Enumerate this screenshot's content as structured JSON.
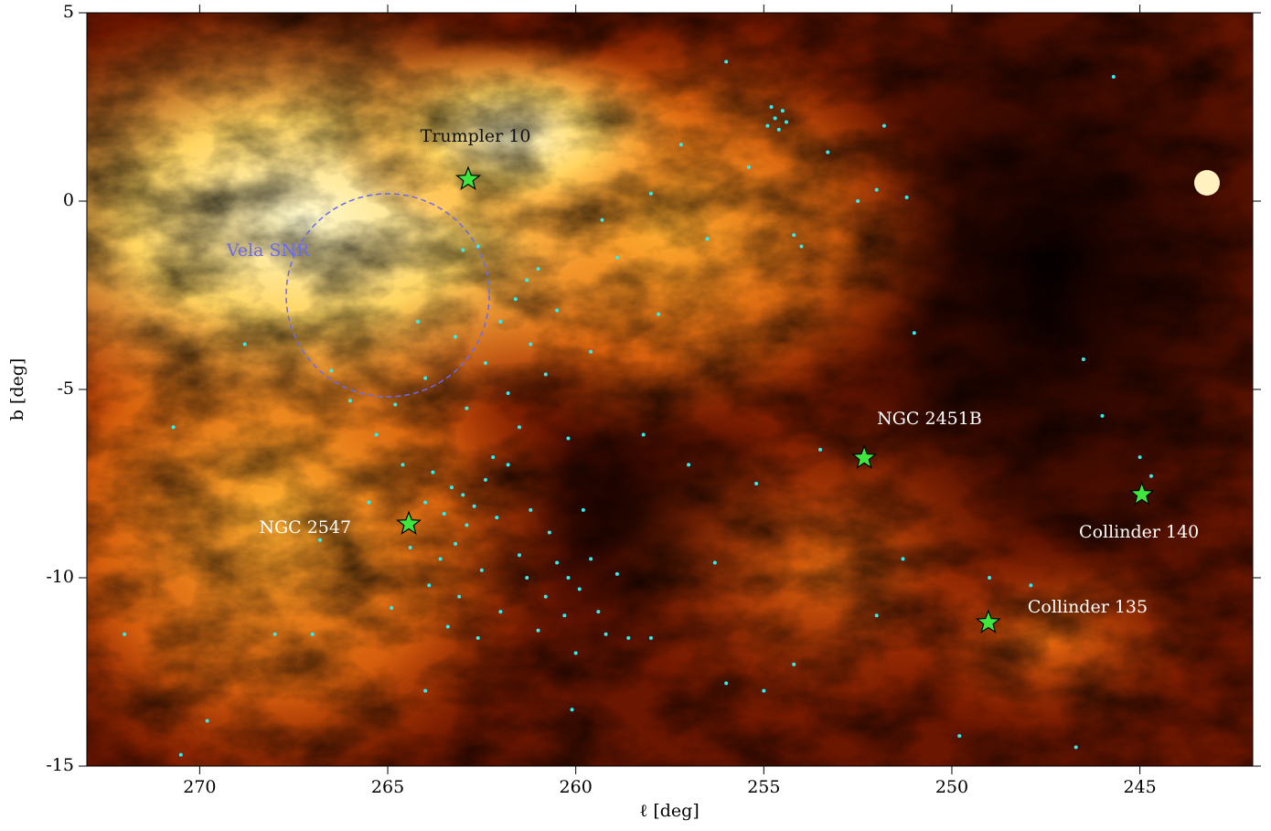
{
  "chart_data": {
    "type": "scatter",
    "xlabel": "ℓ [deg]",
    "ylabel": "b [deg]",
    "xlim": [
      273,
      242
    ],
    "ylim": [
      -15,
      5
    ],
    "xticks": [
      270,
      265,
      260,
      255,
      250,
      245
    ],
    "yticks": [
      5,
      0,
      -5,
      -10,
      -15
    ],
    "point_color": "#2ff0f0",
    "star_color": "#3ee63e",
    "points": {
      "l": [
        263.0,
        263.3,
        262.7,
        263.5,
        262.4,
        263.8,
        262.9,
        263.2,
        262.1,
        263.6,
        262.5,
        261.8,
        262.2,
        264.0,
        264.4,
        263.9,
        263.1,
        262.0,
        261.5,
        261.2,
        264.6,
        265.3,
        264.9,
        263.4,
        262.6,
        260.2,
        260.5,
        259.9,
        260.8,
        259.6,
        260.3,
        261.0,
        259.4,
        260.7,
        259.8,
        261.3,
        258.9,
        259.2,
        260.0,
        258.6,
        261.3,
        261.0,
        261.6,
        262.0,
        261.2,
        260.5,
        262.4,
        261.8,
        260.8,
        262.9,
        261.5,
        260.2,
        259.6,
        258.9,
        259.3,
        258.0,
        257.2,
        256.5,
        257.8,
        262.6,
        254.7,
        254.5,
        254.9,
        254.6,
        254.8,
        254.4,
        254.2,
        254.0,
        252.5,
        252.0,
        251.2,
        253.3,
        255.4,
        251.8,
        268.0,
        267.0,
        270.5,
        269.8,
        264.0,
        258.0,
        256.0,
        254.2,
        251.3,
        249.0,
        247.9,
        246.0,
        245.0,
        244.7,
        246.5,
        251.0,
        253.5,
        255.2,
        257.0,
        256.3,
        258.2,
        266.0,
        266.5,
        264.8,
        264.0,
        268.8,
        270.7,
        272.0,
        266.8,
        265.5,
        263.0,
        263.2,
        264.2,
        260.1,
        249.8,
        246.7,
        255.0,
        252.0,
        245.7,
        256.0
      ],
      "b": [
        -7.8,
        -7.6,
        -8.1,
        -8.3,
        -7.4,
        -7.2,
        -8.6,
        -9.1,
        -8.4,
        -9.5,
        -9.8,
        -7.0,
        -6.8,
        -8.0,
        -9.2,
        -10.2,
        -10.5,
        -10.9,
        -9.4,
        -8.2,
        -7.0,
        -6.2,
        -10.8,
        -11.3,
        -11.6,
        -10.0,
        -9.6,
        -10.3,
        -10.5,
        -9.5,
        -11.0,
        -11.4,
        -10.9,
        -8.8,
        -8.2,
        -10.0,
        -9.9,
        -11.5,
        -12.0,
        -11.6,
        -2.1,
        -1.8,
        -2.6,
        -3.2,
        -3.8,
        -2.9,
        -4.3,
        -5.1,
        -4.6,
        -5.5,
        -6.0,
        -6.3,
        -4.0,
        -1.5,
        -0.5,
        0.2,
        1.5,
        -1.0,
        -3.0,
        -1.2,
        2.2,
        2.4,
        2.0,
        1.9,
        2.5,
        2.1,
        -0.9,
        -1.2,
        0.0,
        0.3,
        0.1,
        1.3,
        0.9,
        2.0,
        -11.5,
        -11.5,
        -14.7,
        -13.8,
        -13.0,
        -11.6,
        -12.8,
        -12.3,
        -9.5,
        -10.0,
        -10.2,
        -5.7,
        -6.8,
        -7.3,
        -4.2,
        -3.5,
        -6.6,
        -7.5,
        -7.0,
        -9.6,
        -6.2,
        -5.3,
        -4.5,
        -5.4,
        -4.7,
        -3.8,
        -6.0,
        -11.5,
        -9.0,
        -8.0,
        -1.3,
        -3.6,
        -3.2,
        -13.5,
        -14.2,
        -14.5,
        -13.0,
        -11.0,
        3.3,
        3.7
      ]
    },
    "clusters": [
      {
        "name": "Trumpler 10",
        "l": 262.86,
        "b": 0.58
      },
      {
        "name": "NGC 2451B",
        "l": 252.33,
        "b": -6.82
      },
      {
        "name": "Collinder 140",
        "l": 244.95,
        "b": -7.79
      },
      {
        "name": "Collinder 135",
        "l": 249.03,
        "b": -11.19
      },
      {
        "name": "NGC 2547",
        "l": 264.44,
        "b": -8.57
      }
    ],
    "vela_snr": {
      "label": "Vela SNR",
      "l": 265.0,
      "b": -2.5,
      "radius": 2.7,
      "color": "#6a6af0"
    }
  }
}
